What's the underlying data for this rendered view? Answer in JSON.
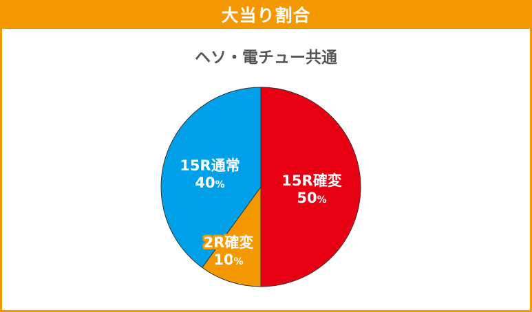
{
  "header": {
    "title": "大当り割合"
  },
  "chart_data": {
    "type": "pie",
    "title": "ヘソ・電チュー共通",
    "start": "12 o'clock",
    "direction": "clockwise",
    "slices": [
      {
        "label": "15R確変",
        "value": 50,
        "value_label": "50",
        "unit": "%",
        "color": "#e60012"
      },
      {
        "label": "2R確変",
        "value": 10,
        "value_label": "10",
        "unit": "%",
        "color": "#f39800"
      },
      {
        "label": "15R通常",
        "value": 40,
        "value_label": "40",
        "unit": "%",
        "color": "#00a0e9"
      }
    ]
  }
}
